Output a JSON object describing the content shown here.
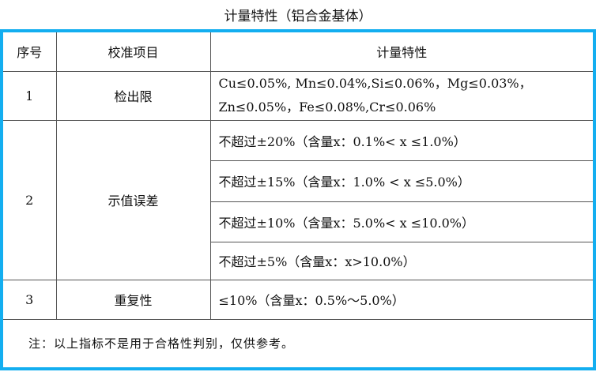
{
  "title": "计量特性（铝合金基体）",
  "headers": [
    "序号",
    "校准项目",
    "计量特性"
  ],
  "rows": [
    {
      "no": "1",
      "item": "检出限",
      "specs": [
        "Cu≤0.05%, Mn≤0.04%,Si≤0.06%，Mg≤0.03%，",
        "Zn≤0.05%，Fe≤0.08%,Cr≤0.06%"
      ]
    },
    {
      "no": "2",
      "item": "示值误差",
      "specs": [
        "不超过±20%（含量x：0.1%< x ≤1.0%）",
        "不超过±15%（含量x：1.0% < x ≤5.0%）",
        "不超过±10%（含量x：5.0%< x ≤10.0%）",
        "不超过±5%（含量x：x>10.0%）"
      ]
    },
    {
      "no": "3",
      "item": "重复性",
      "specs": [
        "≤10%（含量x：0.5%～5.0%）"
      ]
    }
  ],
  "note": "注：以上指标不是用于合格性判别，仅供参考。"
}
